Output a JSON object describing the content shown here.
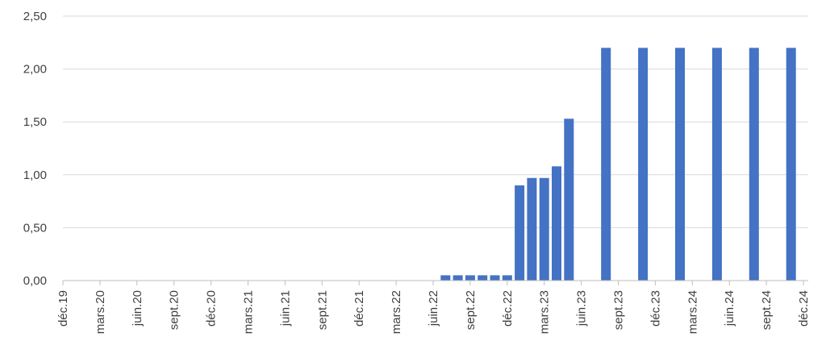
{
  "chart_data": {
    "type": "bar",
    "title": "",
    "xlabel": "",
    "ylabel": "",
    "ylim": [
      0,
      2.5
    ],
    "yticks": [
      "0,00",
      "0,50",
      "1,00",
      "1,50",
      "2,00",
      "2,50"
    ],
    "grid": "horizontal",
    "legend": "none",
    "bar_color": "#4472C4",
    "x_tick_labels": [
      "déc.19",
      "mars.20",
      "juin.20",
      "sept.20",
      "déc.20",
      "mars.21",
      "juin.21",
      "sept.21",
      "déc.21",
      "mars.22",
      "juin.22",
      "sept.22",
      "déc.22",
      "mars.23",
      "juin.23",
      "sept.23",
      "déc.23",
      "mars.24",
      "juin.24",
      "sept.24",
      "déc.24"
    ],
    "points": [
      {
        "date": "2022-07",
        "value": 0.05
      },
      {
        "date": "2022-08",
        "value": 0.05
      },
      {
        "date": "2022-09",
        "value": 0.05
      },
      {
        "date": "2022-10",
        "value": 0.05
      },
      {
        "date": "2022-11",
        "value": 0.05
      },
      {
        "date": "2022-12",
        "value": 0.05
      },
      {
        "date": "2023-01",
        "value": 0.9
      },
      {
        "date": "2023-02",
        "value": 0.97
      },
      {
        "date": "2023-03",
        "value": 0.97
      },
      {
        "date": "2023-04",
        "value": 1.08
      },
      {
        "date": "2023-05",
        "value": 1.53
      },
      {
        "date": "2023-08",
        "value": 2.2
      },
      {
        "date": "2023-11",
        "value": 2.2
      },
      {
        "date": "2024-02",
        "value": 2.2
      },
      {
        "date": "2024-05",
        "value": 2.2
      },
      {
        "date": "2024-08",
        "value": 2.2
      },
      {
        "date": "2024-11",
        "value": 2.2
      }
    ]
  }
}
